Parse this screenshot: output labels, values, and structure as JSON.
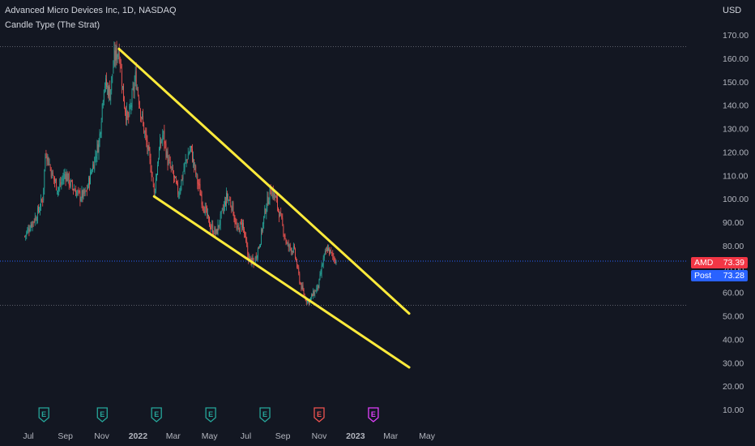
{
  "header": {
    "title": "Advanced Micro Devices Inc, 1D, NASDAQ",
    "subtitle": "Candle Type (The Strat)"
  },
  "currency": "USD",
  "badges": {
    "last": {
      "label": "AMD",
      "value": "73.39",
      "color": "#f23645"
    },
    "post": {
      "label": "Post",
      "value": "73.28",
      "color": "#2962ff"
    }
  },
  "colors": {
    "up": "#26a69a",
    "down": "#ef5350",
    "trendline": "#ffeb3b",
    "background": "#131722"
  },
  "chart_data": {
    "type": "candlestick",
    "symbol": "AMD",
    "x_ticks": [
      "Jul",
      "Sep",
      "Nov",
      "2022",
      "Mar",
      "May",
      "Jul",
      "Sep",
      "Nov",
      "2023",
      "Mar",
      "May"
    ],
    "y_ticks": [
      10,
      20,
      30,
      40,
      50,
      60,
      70,
      80,
      90,
      100,
      110,
      120,
      130,
      140,
      150,
      160,
      170
    ],
    "y_tick_labels": [
      "10.00",
      "20.00",
      "30.00",
      "40.00",
      "50.00",
      "60.00",
      "70.00",
      "80.00",
      "90.00",
      "100.00",
      "110.00",
      "120.00",
      "130.00",
      "140.00",
      "150.00",
      "160.00",
      "170.00"
    ],
    "ylim": [
      5,
      182
    ],
    "price_path": [
      [
        "2021-06-25",
        84
      ],
      [
        "2021-07-05",
        89
      ],
      [
        "2021-07-15",
        93
      ],
      [
        "2021-07-25",
        100
      ],
      [
        "2021-07-30",
        121
      ],
      [
        "2021-08-10",
        110
      ],
      [
        "2021-08-20",
        104
      ],
      [
        "2021-09-01",
        111
      ],
      [
        "2021-09-10",
        106
      ],
      [
        "2021-09-25",
        101
      ],
      [
        "2021-10-05",
        102
      ],
      [
        "2021-10-15",
        112
      ],
      [
        "2021-10-28",
        125
      ],
      [
        "2021-11-05",
        150
      ],
      [
        "2021-11-15",
        145
      ],
      [
        "2021-11-22",
        160
      ],
      [
        "2021-11-30",
        164
      ],
      [
        "2021-12-08",
        142
      ],
      [
        "2021-12-15",
        133
      ],
      [
        "2021-12-20",
        140
      ],
      [
        "2021-12-28",
        152
      ],
      [
        "2022-01-05",
        138
      ],
      [
        "2022-01-15",
        124
      ],
      [
        "2022-01-25",
        110
      ],
      [
        "2022-01-28",
        102
      ],
      [
        "2022-02-05",
        120
      ],
      [
        "2022-02-12",
        128
      ],
      [
        "2022-02-20",
        116
      ],
      [
        "2022-03-01",
        110
      ],
      [
        "2022-03-10",
        102
      ],
      [
        "2022-03-20",
        114
      ],
      [
        "2022-03-30",
        122
      ],
      [
        "2022-04-10",
        108
      ],
      [
        "2022-04-20",
        98
      ],
      [
        "2022-05-01",
        89
      ],
      [
        "2022-05-12",
        85
      ],
      [
        "2022-05-20",
        92
      ],
      [
        "2022-05-30",
        101
      ],
      [
        "2022-06-08",
        97
      ],
      [
        "2022-06-16",
        86
      ],
      [
        "2022-06-25",
        90
      ],
      [
        "2022-07-05",
        75
      ],
      [
        "2022-07-14",
        72
      ],
      [
        "2022-07-25",
        82
      ],
      [
        "2022-08-03",
        96
      ],
      [
        "2022-08-12",
        104
      ],
      [
        "2022-08-20",
        100
      ],
      [
        "2022-08-30",
        90
      ],
      [
        "2022-09-08",
        80
      ],
      [
        "2022-09-20",
        78
      ],
      [
        "2022-09-30",
        64
      ],
      [
        "2022-10-08",
        58
      ],
      [
        "2022-10-14",
        56
      ],
      [
        "2022-10-24",
        60
      ],
      [
        "2022-10-31",
        63
      ],
      [
        "2022-11-08",
        74
      ],
      [
        "2022-11-15",
        79
      ],
      [
        "2022-11-22",
        76
      ],
      [
        "2022-11-30",
        73.39
      ]
    ],
    "last_price": 73.39,
    "post_price": 73.28,
    "horizontal_lines": [
      165,
      73.39,
      54.5
    ],
    "trendlines": [
      {
        "from": [
          "2021-11-30",
          164
        ],
        "to": [
          "2023-04-01",
          51
        ]
      },
      {
        "from": [
          "2022-01-28",
          101
        ],
        "to": [
          "2023-04-01",
          28
        ]
      }
    ],
    "event_markers": [
      {
        "date": "2021-07-27",
        "letter": "E",
        "color": "#26a69a"
      },
      {
        "date": "2021-11-02",
        "letter": "E",
        "color": "#26a69a"
      },
      {
        "date": "2022-02-01",
        "letter": "E",
        "color": "#26a69a"
      },
      {
        "date": "2022-05-03",
        "letter": "E",
        "color": "#26a69a"
      },
      {
        "date": "2022-08-02",
        "letter": "E",
        "color": "#26a69a"
      },
      {
        "date": "2022-11-01",
        "letter": "E",
        "color": "#ef5350"
      },
      {
        "date": "2023-01-31",
        "letter": "E",
        "color": "#e040fb"
      }
    ]
  }
}
